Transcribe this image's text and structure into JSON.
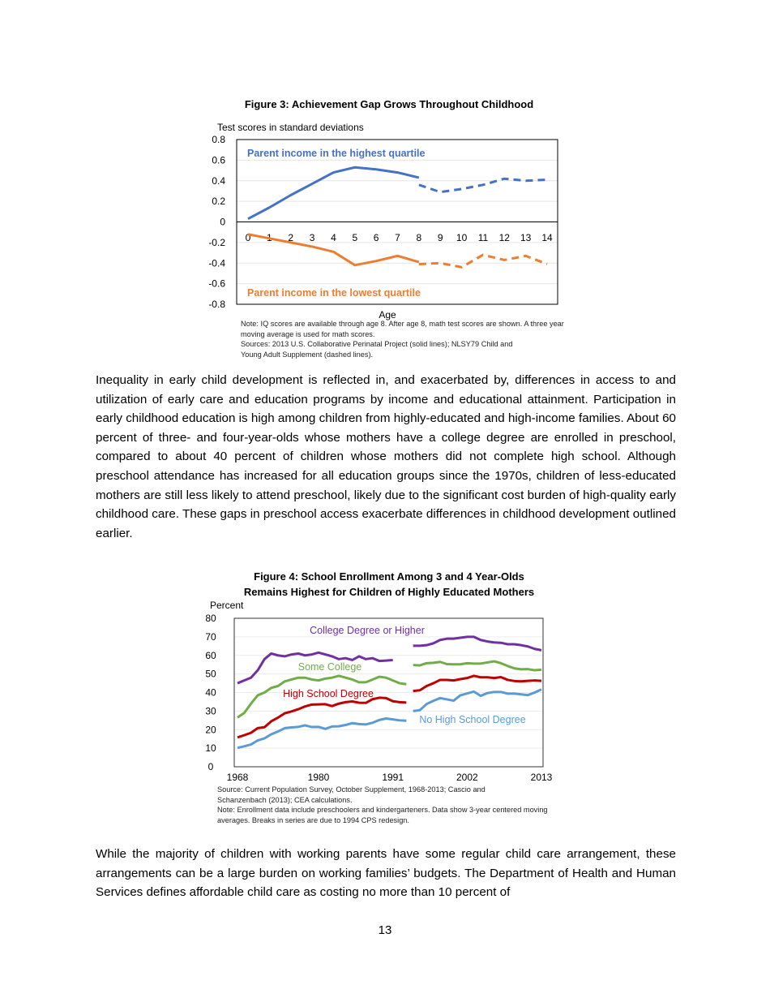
{
  "figure3": {
    "title": "Figure 3: Achievement Gap Grows Throughout Childhood",
    "note": "Note: IQ scores are available through age 8. After age 8, math test scores are shown. A three year moving average is used for math scores.",
    "sources": "Sources: 2013 U.S. Collaborative Perinatal Project (solid lines); NLSY79 Child and Young Adult Supplement (dashed lines)."
  },
  "paragraph1": "Inequality in early child development is reflected in, and exacerbated by, differences in access to and utilization of early care and education programs by income and educational attainment. Participation in early childhood education is high among children from highly-educated and high-income families. About 60 percent of three- and four-year-olds whose mothers have a college degree are enrolled in preschool, compared to about 40 percent of children whose mothers did not complete high school. Although preschool attendance has increased for all education groups since the 1970s, children of less-educated mothers are still less likely to attend preschool, likely due to the significant cost burden of high-quality early childhood care. These gaps in preschool access exacerbate differences in childhood development outlined earlier.",
  "figure4": {
    "title_line1": "Figure 4: School Enrollment Among 3 and 4 Year-Olds",
    "title_line2": "Remains Highest for Children of Highly Educated Mothers",
    "source": "Source: Current Population Survey, October Supplement, 1968-2013; Cascio and Schanzenbach (2013); CEA calculations.",
    "note": "Note: Enrollment data include preschoolers and kindergarteners. Data show 3-year centered moving averages. Breaks in series are due to 1994 CPS redesign."
  },
  "paragraph2": "While the majority of children with working parents have some regular child care arrangement, these arrangements can be a large burden on working families’ budgets. The Department of Health and Human Services defines affordable child care as costing no more than 10 percent of",
  "page_number": "13",
  "chart_data": [
    {
      "type": "line",
      "title": "Figure 3: Achievement Gap Grows Throughout Childhood",
      "xlabel": "Age",
      "ylabel": "Test scores in standard deviations",
      "xlim": [
        0,
        14
      ],
      "ylim": [
        -0.8,
        0.8
      ],
      "yticks": [
        "0.8",
        "0.6",
        "0.4",
        "0.2",
        "0",
        "-0.2",
        "-0.4",
        "-0.6",
        "-0.8"
      ],
      "xticks": [
        "0",
        "1",
        "2",
        "3",
        "4",
        "5",
        "6",
        "7",
        "8",
        "9",
        "10",
        "11",
        "12",
        "13",
        "14"
      ],
      "grid": "horizontal",
      "series": [
        {
          "name": "Parent income in the highest quartile",
          "color": "#4472C4",
          "style": "solid",
          "x": [
            0,
            1,
            2,
            3,
            4,
            5,
            6,
            7,
            8
          ],
          "y": [
            0.03,
            0.14,
            0.26,
            0.37,
            0.48,
            0.53,
            0.51,
            0.48,
            0.43
          ]
        },
        {
          "name": "Parent income in the highest quartile",
          "color": "#4472C4",
          "style": "dashed",
          "x": [
            8,
            9,
            10,
            11,
            12,
            13,
            14
          ],
          "y": [
            0.36,
            0.29,
            0.32,
            0.36,
            0.42,
            0.4,
            0.41
          ]
        },
        {
          "name": "Parent income in the lowest quartile",
          "color": "#ED7D31",
          "style": "solid",
          "x": [
            0,
            1,
            2,
            3,
            4,
            5,
            6,
            7,
            8
          ],
          "y": [
            -0.12,
            -0.16,
            -0.2,
            -0.24,
            -0.29,
            -0.42,
            -0.38,
            -0.33,
            -0.39
          ]
        },
        {
          "name": "Parent income in the lowest quartile",
          "color": "#ED7D31",
          "style": "dashed",
          "x": [
            8,
            9,
            10,
            11,
            12,
            13,
            14
          ],
          "y": [
            -0.41,
            -0.4,
            -0.44,
            -0.32,
            -0.37,
            -0.33,
            -0.41
          ]
        }
      ]
    },
    {
      "type": "line",
      "title": "Figure 4: School Enrollment Among 3 and 4 Year-Olds Remains Highest for Children of Highly Educated Mothers",
      "ylabel": "Percent",
      "xlim": [
        1968,
        2013
      ],
      "ylim": [
        0,
        80
      ],
      "yticks": [
        "80",
        "70",
        "60",
        "50",
        "40",
        "30",
        "20",
        "10",
        "0"
      ],
      "xticks": [
        "1968",
        "1980",
        "1991",
        "2002",
        "2013"
      ],
      "grid": "horizontal",
      "series": [
        {
          "name": "College Degree or Higher",
          "color": "#7030A0",
          "segments": [
            {
              "x0": 1968,
              "y": [
                45,
                46.5,
                48,
                52,
                58,
                61,
                60,
                59.5,
                60.5,
                61,
                60,
                60.5,
                61.5,
                60.5,
                59.5,
                58,
                58.5,
                57.5,
                59.5,
                58,
                58.5,
                57,
                57.2,
                57.5
              ]
            },
            {
              "x0": 1994,
              "y": [
                65.2,
                65.2,
                65.5,
                66.5,
                68.3,
                69,
                69,
                69.5,
                70,
                70,
                68.3,
                67.5,
                67,
                66.8,
                66,
                66,
                65.5,
                64.8,
                63.5,
                62.8
              ]
            }
          ]
        },
        {
          "name": "Some College",
          "color": "#70AD47",
          "segments": [
            {
              "x0": 1968,
              "y": [
                26.5,
                29,
                34,
                38.5,
                40,
                42.5,
                43.5,
                46,
                47,
                48,
                48,
                47,
                46.5,
                47.5,
                48,
                49,
                48,
                47,
                45.5,
                45.5,
                47,
                48.5,
                48,
                46.5,
                45,
                44.5
              ]
            },
            {
              "x0": 1994,
              "y": [
                54.8,
                54.6,
                55.8,
                56,
                56.5,
                55.3,
                55.2,
                55.2,
                55.8,
                55.6,
                55.6,
                56.2,
                56.8,
                55.8,
                54.3,
                53,
                52.5,
                52.6,
                52,
                52.3
              ]
            }
          ]
        },
        {
          "name": "High School Degree",
          "color": "#C00000",
          "segments": [
            {
              "x0": 1968,
              "y": [
                15.8,
                17,
                18.3,
                20.8,
                21.3,
                24.5,
                26.5,
                28.8,
                29.8,
                31,
                32.5,
                33.5,
                33.6,
                33.7,
                32.7,
                34,
                34.8,
                35.2,
                34.5,
                34.4,
                36.4,
                37.2,
                37,
                35.3,
                34.8,
                34.6
              ]
            },
            {
              "x0": 1994,
              "y": [
                40.8,
                41.2,
                43.5,
                45,
                46.8,
                46.8,
                46.5,
                47.2,
                47.8,
                49,
                48.2,
                48.2,
                47.8,
                48.3,
                46.8,
                46.2,
                46,
                46.3,
                46.5,
                46.3
              ]
            }
          ]
        },
        {
          "name": "No High School Degree",
          "color": "#5B9BD5",
          "segments": [
            {
              "x0": 1968,
              "y": [
                10.2,
                11,
                12,
                14.2,
                15.3,
                17.5,
                19,
                20.8,
                21.2,
                21.5,
                22.3,
                21.4,
                21.5,
                20.4,
                21.7,
                21.8,
                22.5,
                23.5,
                23,
                22.8,
                23.7,
                25.2,
                26,
                25.5,
                25,
                24.8
              ]
            },
            {
              "x0": 1994,
              "y": [
                30,
                30.5,
                33.8,
                35.5,
                37,
                36.3,
                35.6,
                38.5,
                39.5,
                40.5,
                38.2,
                39.7,
                40.3,
                40.3,
                39.4,
                39.4,
                39,
                38.6,
                40,
                41.7
              ]
            }
          ]
        }
      ]
    }
  ]
}
